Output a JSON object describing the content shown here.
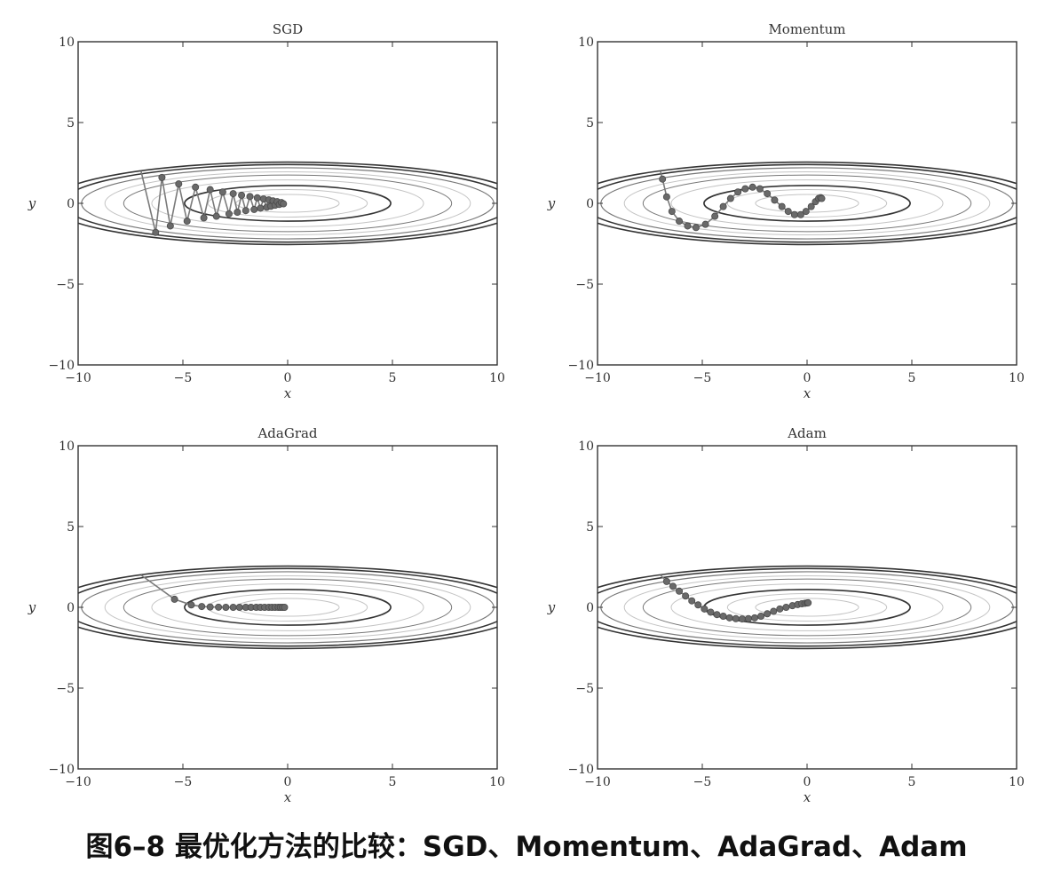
{
  "caption": "图6–8 最优化方法的比较：SGD、Momentum、AdaGrad、Adam",
  "colors": {
    "frame": "#333333",
    "contour_dark": "#333333",
    "contour_mid": "#777777",
    "contour_light": "#c4c4c4",
    "path_line": "#7a7a7a",
    "marker": "#6a6a6a",
    "start_line": "#888888"
  },
  "chart_data": [
    {
      "type": "line",
      "title": "SGD",
      "xlabel": "x",
      "ylabel": "y",
      "xlim": [
        -10,
        10
      ],
      "ylim": [
        -10,
        10
      ],
      "xticks": [
        -10,
        -5,
        0,
        5,
        10
      ],
      "yticks": [
        -10,
        -5,
        0,
        5,
        10
      ],
      "grid": false,
      "background": "elliptical contours of f(x, y) = x²/20 + y², centered at (0, 0)",
      "start": [
        -7.0,
        2.0
      ],
      "path_x": [
        -6.3,
        -6.0,
        -5.6,
        -5.2,
        -4.8,
        -4.4,
        -4.0,
        -3.7,
        -3.4,
        -3.1,
        -2.8,
        -2.6,
        -2.4,
        -2.2,
        -2.0,
        -1.8,
        -1.6,
        -1.45,
        -1.3,
        -1.15,
        -1.0,
        -0.9,
        -0.8,
        -0.7,
        -0.6,
        -0.5,
        -0.4,
        -0.3,
        -0.2
      ],
      "path_y": [
        -1.8,
        1.6,
        -1.4,
        1.2,
        -1.1,
        1.0,
        -0.9,
        0.85,
        -0.8,
        0.7,
        -0.65,
        0.6,
        -0.55,
        0.5,
        -0.45,
        0.42,
        -0.38,
        0.34,
        -0.3,
        0.27,
        -0.24,
        0.21,
        -0.18,
        0.15,
        -0.12,
        0.1,
        -0.07,
        0.05,
        -0.03
      ]
    },
    {
      "type": "line",
      "title": "Momentum",
      "xlabel": "x",
      "ylabel": "y",
      "xlim": [
        -10,
        10
      ],
      "ylim": [
        -10,
        10
      ],
      "xticks": [
        -10,
        -5,
        0,
        5,
        10
      ],
      "yticks": [
        -10,
        -5,
        0,
        5,
        10
      ],
      "grid": false,
      "background": "elliptical contours of f(x, y) = x²/20 + y², centered at (0, 0)",
      "start": [
        -7.0,
        2.0
      ],
      "path_x": [
        -6.9,
        -6.7,
        -6.45,
        -6.1,
        -5.7,
        -5.3,
        -4.85,
        -4.4,
        -4.0,
        -3.65,
        -3.3,
        -2.95,
        -2.6,
        -2.25,
        -1.9,
        -1.55,
        -1.2,
        -0.9,
        -0.6,
        -0.3,
        -0.05,
        0.2,
        0.4,
        0.55,
        0.65,
        0.7
      ],
      "path_y": [
        1.5,
        0.4,
        -0.5,
        -1.1,
        -1.4,
        -1.5,
        -1.3,
        -0.8,
        -0.2,
        0.3,
        0.7,
        0.9,
        1.0,
        0.9,
        0.6,
        0.2,
        -0.2,
        -0.5,
        -0.7,
        -0.7,
        -0.5,
        -0.2,
        0.1,
        0.3,
        0.35,
        0.3
      ]
    },
    {
      "type": "line",
      "title": "AdaGrad",
      "xlabel": "x",
      "ylabel": "y",
      "xlim": [
        -10,
        10
      ],
      "ylim": [
        -10,
        10
      ],
      "xticks": [
        -10,
        -5,
        0,
        5,
        10
      ],
      "yticks": [
        -10,
        -5,
        0,
        5,
        10
      ],
      "grid": false,
      "background": "elliptical contours of f(x, y) = x²/20 + y², centered at (0, 0)",
      "start": [
        -7.0,
        2.0
      ],
      "path_x": [
        -5.4,
        -4.6,
        -4.1,
        -3.7,
        -3.3,
        -2.95,
        -2.6,
        -2.3,
        -2.0,
        -1.75,
        -1.5,
        -1.3,
        -1.1,
        -0.9,
        -0.75,
        -0.6,
        -0.45,
        -0.35,
        -0.25,
        -0.15
      ],
      "path_y": [
        0.5,
        0.15,
        0.05,
        0.02,
        0.01,
        0.0,
        0.0,
        0.0,
        0.0,
        0.0,
        0.0,
        0.0,
        0.0,
        0.0,
        0.0,
        0.0,
        0.0,
        0.0,
        0.0,
        0.0
      ]
    },
    {
      "type": "line",
      "title": "Adam",
      "xlabel": "x",
      "ylabel": "y",
      "xlim": [
        -10,
        10
      ],
      "ylim": [
        -10,
        10
      ],
      "xticks": [
        -10,
        -5,
        0,
        5,
        10
      ],
      "yticks": [
        -10,
        -5,
        0,
        5,
        10
      ],
      "grid": false,
      "background": "elliptical contours of f(x, y) = x²/20 + y², centered at (0, 0)",
      "start": [
        -7.0,
        2.0
      ],
      "path_x": [
        -6.7,
        -6.4,
        -6.1,
        -5.8,
        -5.5,
        -5.2,
        -4.9,
        -4.6,
        -4.3,
        -4.0,
        -3.7,
        -3.4,
        -3.1,
        -2.8,
        -2.5,
        -2.2,
        -1.9,
        -1.6,
        -1.3,
        -1.0,
        -0.7,
        -0.45,
        -0.25,
        -0.1,
        0.0,
        0.05
      ],
      "path_y": [
        1.6,
        1.3,
        1.0,
        0.7,
        0.4,
        0.15,
        -0.1,
        -0.3,
        -0.45,
        -0.55,
        -0.65,
        -0.7,
        -0.72,
        -0.7,
        -0.65,
        -0.55,
        -0.4,
        -0.25,
        -0.1,
        0.0,
        0.1,
        0.17,
        0.22,
        0.25,
        0.27,
        0.28
      ]
    }
  ]
}
